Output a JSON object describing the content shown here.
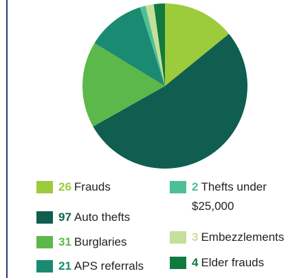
{
  "chart_data": {
    "type": "pie",
    "categories": [
      "Frauds",
      "Auto thefts",
      "Burglaries",
      "APS referrals",
      "Thefts under $25,000",
      "Embezzlements",
      "Elder frauds"
    ],
    "values": [
      26,
      97,
      31,
      21,
      2,
      3,
      4
    ],
    "colors": [
      "#9ccb3b",
      "#0f5e4f",
      "#5cb84a",
      "#1a8a72",
      "#4dbf94",
      "#c5e09a",
      "#117a3e"
    ]
  }
}
